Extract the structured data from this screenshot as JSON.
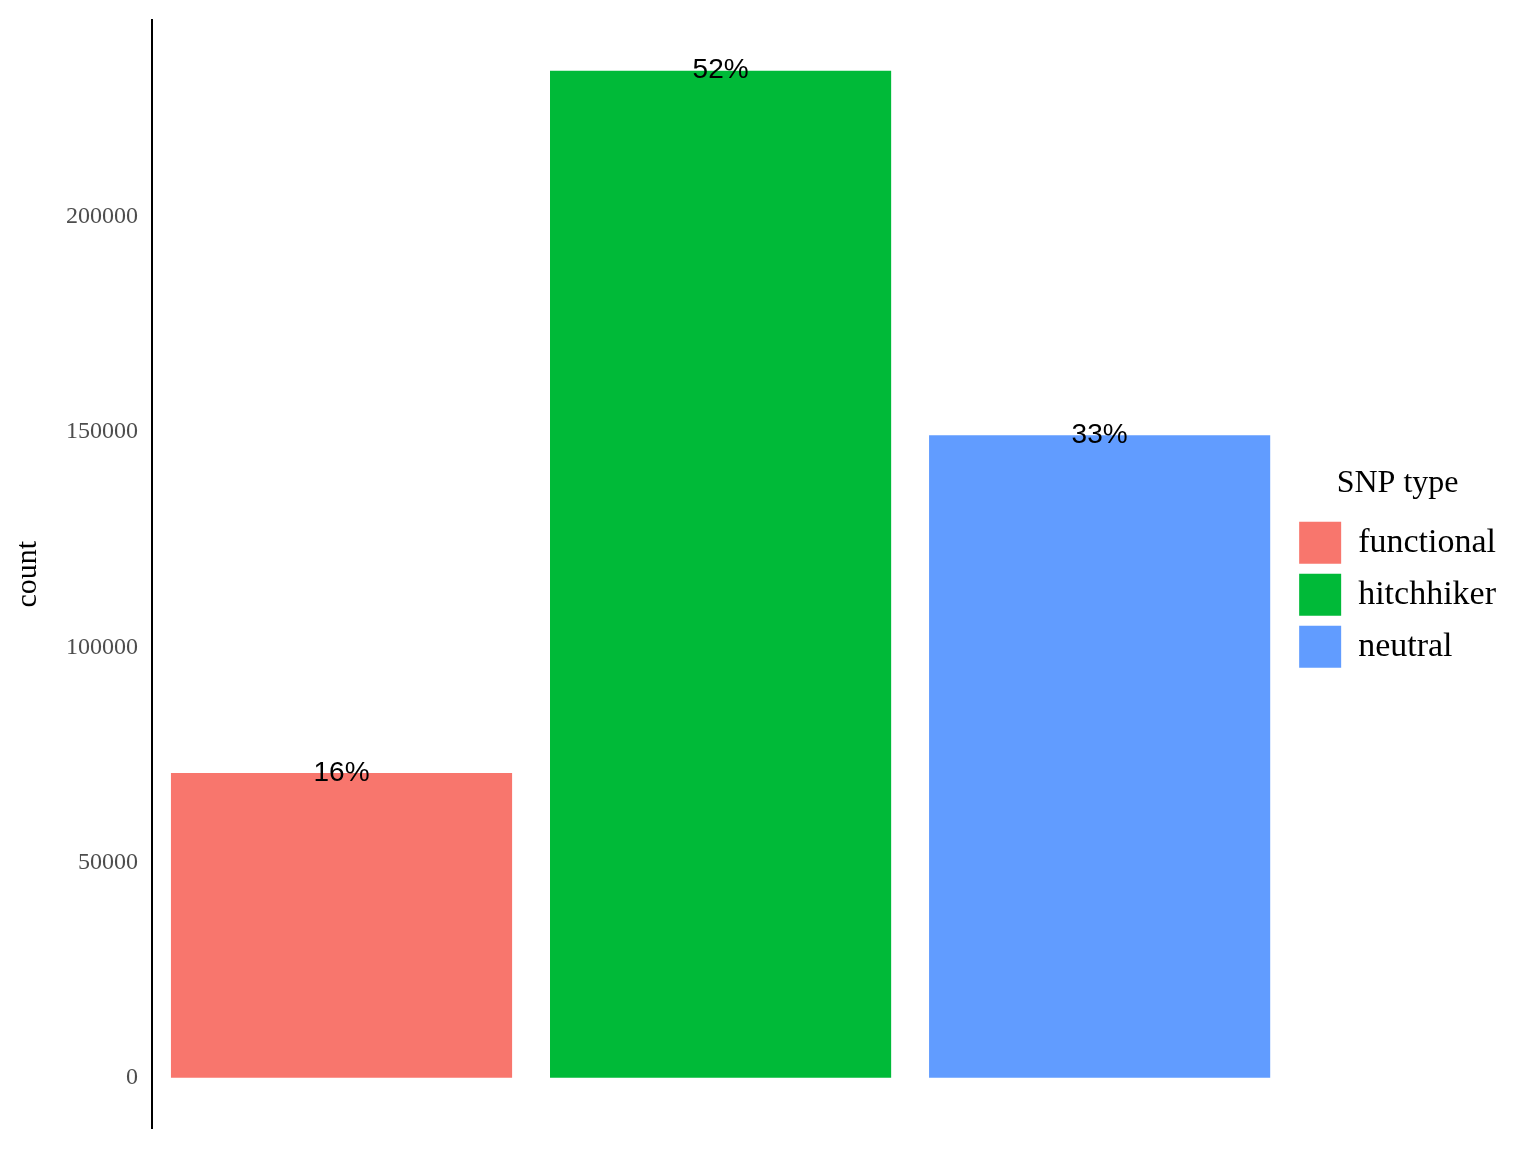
{
  "chart_data": {
    "type": "bar",
    "y_label": "count",
    "legend_title": "SNP type",
    "categories": [
      "functional",
      "hitchhiker",
      "neutral"
    ],
    "values": [
      70800,
      234000,
      149300
    ],
    "colors": [
      "#f8766d",
      "#00ba38",
      "#619cff"
    ],
    "annotations": [
      "16%",
      "52%",
      "33%"
    ],
    "ylim": [
      -11700,
      245700
    ],
    "yticks": [
      0,
      50000,
      100000,
      150000,
      200000
    ],
    "grid": false,
    "legend": "right",
    "tick_labels": "y"
  }
}
